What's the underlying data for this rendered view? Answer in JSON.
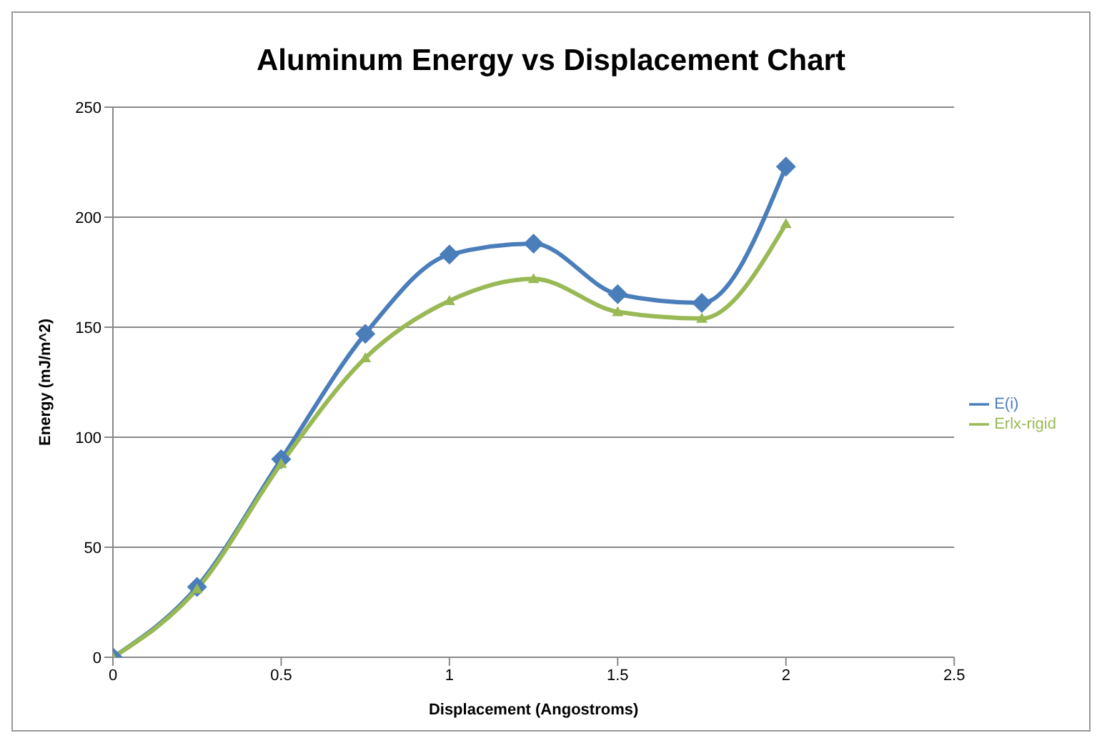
{
  "chart_data": {
    "type": "line",
    "title": "Aluminum Energy vs Displacement Chart",
    "xlabel": "Displacement  (Angostroms)",
    "ylabel": "Energy (mJ/m^2)",
    "x": [
      0,
      0.25,
      0.5,
      0.75,
      1,
      1.25,
      1.5,
      1.75,
      2
    ],
    "series": [
      {
        "name": "E(i)",
        "color": "#4a7ebb",
        "marker": "diamond",
        "values": [
          0,
          32,
          90,
          147,
          183,
          188,
          165,
          161,
          223
        ]
      },
      {
        "name": "Erlx-rigid",
        "color": "#98b954",
        "marker": "triangle",
        "values": [
          0,
          31,
          88,
          136,
          162,
          172,
          157,
          154,
          197
        ]
      }
    ],
    "xlim": [
      0,
      2.5
    ],
    "xticks": [
      0,
      0.5,
      1,
      1.5,
      2,
      2.5
    ],
    "ylim": [
      0,
      250
    ],
    "yticks": [
      0,
      50,
      100,
      150,
      200,
      250
    ],
    "grid": "y",
    "legend": "right"
  }
}
